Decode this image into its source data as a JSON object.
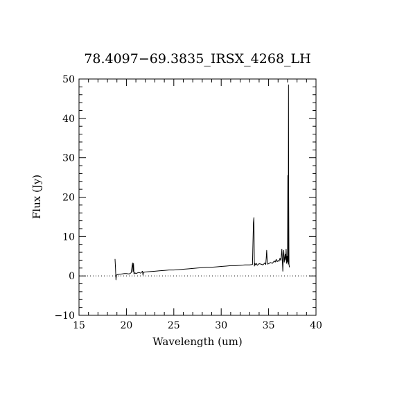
{
  "chart_data": {
    "type": "line",
    "title": "78.4097−69.3835_IRSX_4268_LH",
    "xlabel": "Wavelength (um)",
    "ylabel": "Flux (Jy)",
    "xlim": [
      15,
      40
    ],
    "ylim": [
      -10,
      50
    ],
    "x_ticks": [
      15,
      20,
      25,
      30,
      35,
      40
    ],
    "y_ticks": [
      -10,
      0,
      10,
      20,
      30,
      40,
      50
    ],
    "x_tick_labels": [
      "15",
      "20",
      "25",
      "30",
      "35",
      "40"
    ],
    "y_tick_labels": [
      "−10",
      "0",
      "10",
      "20",
      "30",
      "40",
      "50"
    ],
    "x_minor_step": 1,
    "y_minor_step": 2,
    "grid": false,
    "reference_line": {
      "y": 0,
      "style": "dotted"
    },
    "series": [
      {
        "x": [
          18.8,
          18.85,
          18.9,
          18.95,
          19.0,
          19.2,
          19.5,
          19.8,
          20.0,
          20.3,
          20.5,
          20.6,
          20.65,
          20.7,
          20.75,
          20.8,
          20.9,
          21.0,
          21.3,
          21.5,
          21.7,
          21.75,
          21.8,
          22.0,
          22.5,
          23.0,
          23.5,
          24.0,
          24.5,
          25.0,
          25.5,
          26.0,
          26.5,
          27.0,
          27.5,
          28.0,
          28.5,
          29.0,
          29.5,
          30.0,
          30.5,
          31.0,
          31.5,
          32.0,
          32.5,
          33.0,
          33.3,
          33.4,
          33.45,
          33.5,
          33.55,
          33.6,
          33.7,
          33.8,
          34.0,
          34.2,
          34.4,
          34.6,
          34.7,
          34.75,
          34.8,
          34.85,
          34.9,
          35.0,
          35.2,
          35.4,
          35.6,
          35.7,
          35.8,
          35.9,
          36.0,
          36.1,
          36.2,
          36.3,
          36.4,
          36.5,
          36.55,
          36.6,
          36.65,
          36.7,
          36.75,
          36.8,
          36.85,
          36.9,
          36.95,
          37.0,
          37.03,
          37.05,
          37.07,
          37.1,
          37.12,
          37.15,
          37.18,
          37.2
        ],
        "y": [
          4.3,
          2.0,
          -1.0,
          0.2,
          0.3,
          0.4,
          0.5,
          0.6,
          0.6,
          0.5,
          0.8,
          2.5,
          3.3,
          1.0,
          3.2,
          0.5,
          0.8,
          0.6,
          0.9,
          0.7,
          1.2,
          0.2,
          0.9,
          1.0,
          1.1,
          1.2,
          1.3,
          1.4,
          1.5,
          1.5,
          1.6,
          1.7,
          1.8,
          1.9,
          2.0,
          2.1,
          2.2,
          2.2,
          2.3,
          2.4,
          2.5,
          2.6,
          2.6,
          2.7,
          2.8,
          2.8,
          2.9,
          13.5,
          14.8,
          2.5,
          3.2,
          2.8,
          3.2,
          2.7,
          3.1,
          3.0,
          2.8,
          3.3,
          2.9,
          4.5,
          6.5,
          3.8,
          3.0,
          3.1,
          3.4,
          3.2,
          3.8,
          3.5,
          4.2,
          3.6,
          3.9,
          3.7,
          4.5,
          3.9,
          6.8,
          1.2,
          5.5,
          6.5,
          3.5,
          4.5,
          5.5,
          4.0,
          6.8,
          3.2,
          5.0,
          3.5,
          25.5,
          10.0,
          3.0,
          48.5,
          20.0,
          3.0,
          2.5,
          2.2
        ]
      }
    ]
  }
}
